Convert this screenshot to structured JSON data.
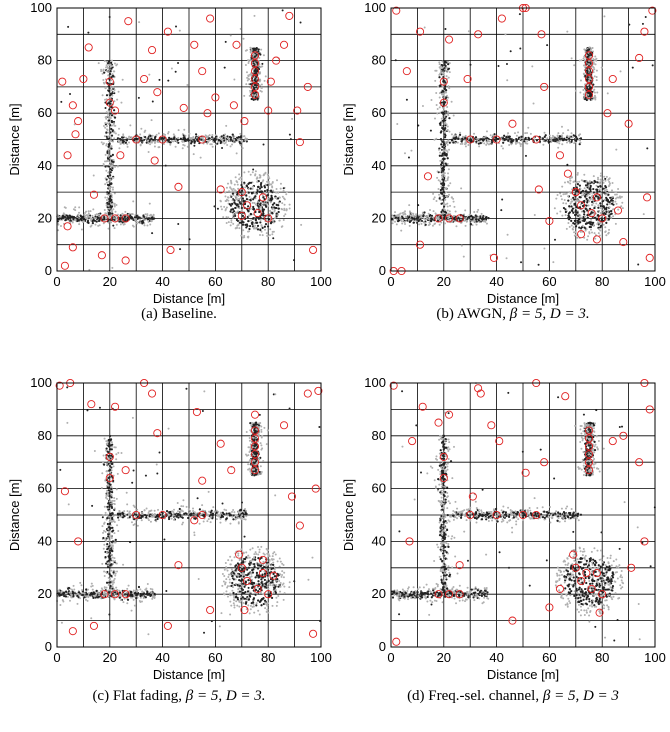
{
  "colors": {
    "grid": "#000000",
    "light_points": "#b0b0b0",
    "dark_points": "#222222",
    "circles": "#e02020"
  },
  "chart_data": [
    {
      "type": "scatter",
      "caption": "(a) Baseline.",
      "xlabel": "Distance [m]",
      "ylabel": "Distance [m]",
      "xlim": [
        0,
        100
      ],
      "ylim": [
        0,
        100
      ],
      "xticks": [
        "0",
        "20",
        "40",
        "60",
        "80",
        "100"
      ],
      "yticks": [
        "0",
        "20",
        "40",
        "60",
        "80",
        "100"
      ],
      "grid": "on",
      "grid_spacing": 10,
      "clusters": [
        {
          "shape": "horizontal",
          "x_range": [
            0,
            37
          ],
          "y": 20
        },
        {
          "shape": "vertical",
          "x": 20,
          "y_range": [
            20,
            80
          ]
        },
        {
          "shape": "horizontal",
          "x_range": [
            23,
            72
          ],
          "y": 50
        },
        {
          "shape": "vertical",
          "x": 75,
          "y_range": [
            65,
            85
          ]
        },
        {
          "shape": "blob",
          "center": [
            75,
            25
          ],
          "radius": 12
        }
      ],
      "red_circles": [
        [
          4,
          17
        ],
        [
          6,
          9
        ],
        [
          8,
          57
        ],
        [
          4,
          44
        ],
        [
          6,
          63
        ],
        [
          10,
          73
        ],
        [
          12,
          85
        ],
        [
          2,
          72
        ],
        [
          7,
          52
        ],
        [
          14,
          29
        ],
        [
          17,
          6
        ],
        [
          26,
          4
        ],
        [
          27,
          95
        ],
        [
          36,
          84
        ],
        [
          33,
          73
        ],
        [
          38,
          68
        ],
        [
          37,
          42
        ],
        [
          42,
          91
        ],
        [
          43,
          8
        ],
        [
          46,
          32
        ],
        [
          52,
          86
        ],
        [
          55,
          76
        ],
        [
          57,
          60
        ],
        [
          58,
          96
        ],
        [
          60,
          66
        ],
        [
          67,
          63
        ],
        [
          68,
          86
        ],
        [
          70,
          21
        ],
        [
          71,
          57
        ],
        [
          80,
          61
        ],
        [
          81,
          72
        ],
        [
          83,
          80
        ],
        [
          86,
          86
        ],
        [
          88,
          97
        ],
        [
          91,
          61
        ],
        [
          92,
          49
        ],
        [
          95,
          70
        ],
        [
          97,
          8
        ],
        [
          3,
          2
        ],
        [
          48,
          62
        ],
        [
          62,
          31
        ],
        [
          22,
          61
        ],
        [
          24,
          44
        ]
      ]
    },
    {
      "type": "scatter",
      "caption_prefix": "(b) AWGN, ",
      "caption_param1": "β = 5, ",
      "caption_param2": "D = 3.",
      "xlabel": "Distance [m]",
      "ylabel": "Distance [m]",
      "xlim": [
        0,
        100
      ],
      "ylim": [
        0,
        100
      ],
      "xticks": [
        "0",
        "20",
        "40",
        "60",
        "80",
        "100"
      ],
      "yticks": [
        "0",
        "20",
        "40",
        "60",
        "80",
        "100"
      ],
      "grid": "on",
      "clusters": [
        {
          "shape": "horizontal",
          "x_range": [
            0,
            37
          ],
          "y": 20
        },
        {
          "shape": "vertical",
          "x": 20,
          "y_range": [
            20,
            80
          ]
        },
        {
          "shape": "horizontal",
          "x_range": [
            23,
            72
          ],
          "y": 50
        },
        {
          "shape": "vertical",
          "x": 75,
          "y_range": [
            65,
            85
          ]
        },
        {
          "shape": "blob",
          "center": [
            75,
            25
          ],
          "radius": 12
        }
      ],
      "red_circles": [
        [
          1,
          0
        ],
        [
          4,
          0
        ],
        [
          2,
          99
        ],
        [
          6,
          76
        ],
        [
          11,
          10
        ],
        [
          11,
          91
        ],
        [
          14,
          36
        ],
        [
          22,
          88
        ],
        [
          29,
          73
        ],
        [
          33,
          90
        ],
        [
          39,
          5
        ],
        [
          42,
          96
        ],
        [
          46,
          56
        ],
        [
          50,
          100
        ],
        [
          51,
          100
        ],
        [
          56,
          31
        ],
        [
          57,
          90
        ],
        [
          58,
          70
        ],
        [
          60,
          19
        ],
        [
          64,
          44
        ],
        [
          67,
          37
        ],
        [
          70,
          30
        ],
        [
          72,
          14
        ],
        [
          78,
          12
        ],
        [
          82,
          60
        ],
        [
          84,
          73
        ],
        [
          86,
          23
        ],
        [
          88,
          11
        ],
        [
          90,
          56
        ],
        [
          94,
          81
        ],
        [
          96,
          91
        ],
        [
          97,
          28
        ],
        [
          98,
          5
        ],
        [
          99,
          99
        ]
      ]
    },
    {
      "type": "scatter",
      "caption_prefix": "(c) Flat fading, ",
      "caption_param1": "β = 5, ",
      "caption_param2": "D = 3.",
      "xlabel": "Distance [m]",
      "ylabel": "Distance [m]",
      "xlim": [
        0,
        100
      ],
      "ylim": [
        0,
        100
      ],
      "xticks": [
        "0",
        "20",
        "40",
        "60",
        "80",
        "100"
      ],
      "yticks": [
        "0",
        "20",
        "40",
        "60",
        "80",
        "100"
      ],
      "grid": "on",
      "clusters": [
        {
          "shape": "horizontal",
          "x_range": [
            0,
            37
          ],
          "y": 20
        },
        {
          "shape": "vertical",
          "x": 20,
          "y_range": [
            20,
            80
          ]
        },
        {
          "shape": "horizontal",
          "x_range": [
            23,
            72
          ],
          "y": 50
        },
        {
          "shape": "vertical",
          "x": 75,
          "y_range": [
            65,
            85
          ]
        },
        {
          "shape": "blob",
          "center": [
            75,
            25
          ],
          "radius": 12
        }
      ],
      "red_circles": [
        [
          1,
          99
        ],
        [
          5,
          100
        ],
        [
          3,
          59
        ],
        [
          6,
          6
        ],
        [
          8,
          40
        ],
        [
          13,
          92
        ],
        [
          14,
          8
        ],
        [
          22,
          91
        ],
        [
          26,
          67
        ],
        [
          33,
          100
        ],
        [
          36,
          96
        ],
        [
          38,
          81
        ],
        [
          42,
          8
        ],
        [
          46,
          31
        ],
        [
          52,
          48
        ],
        [
          53,
          89
        ],
        [
          55,
          63
        ],
        [
          58,
          14
        ],
        [
          62,
          77
        ],
        [
          66,
          67
        ],
        [
          69,
          35
        ],
        [
          71,
          14
        ],
        [
          75,
          88
        ],
        [
          78,
          33
        ],
        [
          82,
          27
        ],
        [
          86,
          84
        ],
        [
          89,
          57
        ],
        [
          92,
          46
        ],
        [
          95,
          96
        ],
        [
          97,
          5
        ],
        [
          98,
          60
        ],
        [
          99,
          97
        ]
      ]
    },
    {
      "type": "scatter",
      "caption_prefix": "(d) Freq.-sel. channel, ",
      "caption_param1": "β = 5, ",
      "caption_param2": "D = 3",
      "xlabel": "Distance [m]",
      "ylabel": "Distance [m]",
      "xlim": [
        0,
        100
      ],
      "ylim": [
        0,
        100
      ],
      "xticks": [
        "0",
        "20",
        "40",
        "60",
        "80",
        "100"
      ],
      "yticks": [
        "0",
        "20",
        "40",
        "60",
        "80",
        "100"
      ],
      "grid": "on",
      "clusters": [
        {
          "shape": "horizontal",
          "x_range": [
            0,
            37
          ],
          "y": 20
        },
        {
          "shape": "vertical",
          "x": 20,
          "y_range": [
            20,
            80
          ]
        },
        {
          "shape": "horizontal",
          "x_range": [
            23,
            72
          ],
          "y": 50
        },
        {
          "shape": "vertical",
          "x": 75,
          "y_range": [
            65,
            85
          ]
        },
        {
          "shape": "blob",
          "center": [
            75,
            25
          ],
          "radius": 12
        }
      ],
      "red_circles": [
        [
          1,
          99
        ],
        [
          2,
          2
        ],
        [
          8,
          78
        ],
        [
          7,
          40
        ],
        [
          12,
          91
        ],
        [
          18,
          85
        ],
        [
          22,
          88
        ],
        [
          26,
          31
        ],
        [
          31,
          57
        ],
        [
          33,
          98
        ],
        [
          34,
          96
        ],
        [
          38,
          84
        ],
        [
          41,
          78
        ],
        [
          46,
          10
        ],
        [
          50,
          50
        ],
        [
          51,
          66
        ],
        [
          55,
          100
        ],
        [
          58,
          70
        ],
        [
          60,
          15
        ],
        [
          64,
          22
        ],
        [
          66,
          95
        ],
        [
          69,
          35
        ],
        [
          74,
          28
        ],
        [
          79,
          13
        ],
        [
          84,
          78
        ],
        [
          88,
          80
        ],
        [
          91,
          30
        ],
        [
          94,
          70
        ],
        [
          96,
          100
        ],
        [
          98,
          90
        ],
        [
          96,
          40
        ]
      ]
    }
  ]
}
